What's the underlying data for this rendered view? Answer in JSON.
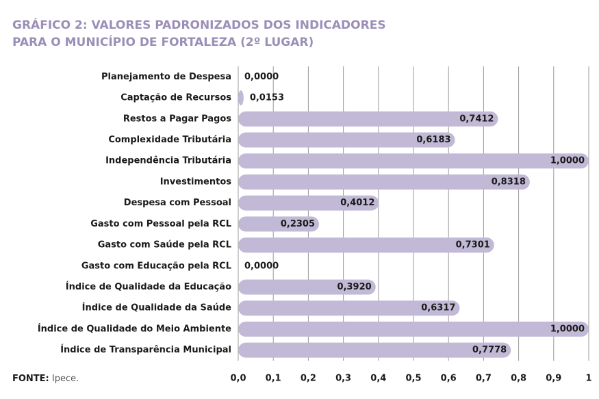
{
  "chart_data": {
    "type": "bar",
    "orientation": "horizontal",
    "title": [
      "GRÁFICO 2: VALORES PADRONIZADOS DOS INDICADORES",
      "PARA O MUNICÍPIO DE FORTALEZA (2º LUGAR)"
    ],
    "categories": [
      "Planejamento de Despesa",
      "Captação de Recursos",
      "Restos a Pagar Pagos",
      "Complexidade Tributária",
      "Independência Tributária",
      "Investimentos",
      "Despesa com Pessoal",
      "Gasto com Pessoal pela RCL",
      "Gasto com Saúde pela RCL",
      "Gasto com Educação pela RCL",
      "Índice de Qualidade da Educação",
      "Índice de Qualidade da Saúde",
      "Índice de Qualidade do Meio Ambiente",
      "Índice de Transparência Municipal"
    ],
    "values": [
      0,
      0.0153,
      0.7412,
      0.6183,
      1,
      0.8318,
      0.4012,
      0.2305,
      0.7301,
      0,
      0.392,
      0.6317,
      1,
      0.7778
    ],
    "value_labels": [
      "0,0000",
      "0,0153",
      "0,7412",
      "0,6183",
      "1,0000",
      "0,8318",
      "0,4012",
      "0,2305",
      "0,7301",
      "0,0000",
      "0,3920",
      "0,6317",
      "1,0000",
      "0,7778"
    ],
    "color": "#c1b9d5",
    "xlim": [
      0,
      1
    ],
    "xticks": [
      {
        "value": 0,
        "label": "0,0"
      },
      {
        "value": 0.1,
        "label": "0,1"
      },
      {
        "value": 0.2,
        "label": "0,2"
      },
      {
        "value": 0.3,
        "label": "0,3"
      },
      {
        "value": 0.4,
        "label": "0,4"
      },
      {
        "value": 0.5,
        "label": "0,5"
      },
      {
        "value": 0.6,
        "label": "0,6"
      },
      {
        "value": 0.7,
        "label": "0,7"
      },
      {
        "value": 0.8,
        "label": "0,8"
      },
      {
        "value": 0.9,
        "label": "0,9"
      },
      1
    ],
    "grid": true,
    "source": {
      "label": "FONTE:",
      "text": "Ipece."
    }
  }
}
